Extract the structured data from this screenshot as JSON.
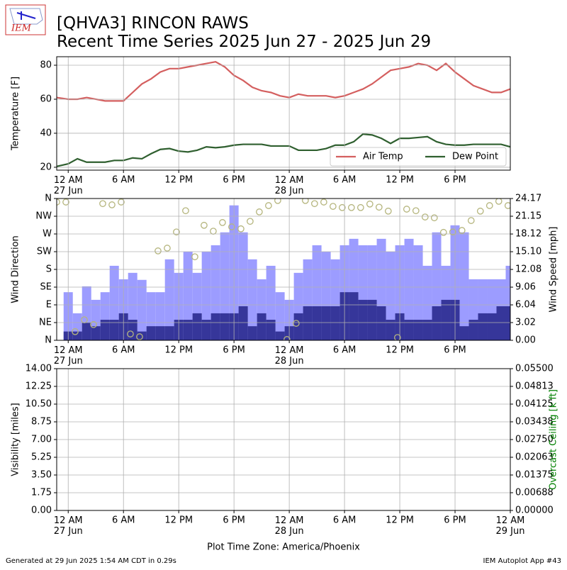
{
  "header": {
    "title": "[QHVA3] RINCON RAWS",
    "subtitle": "Recent Time Series 2025 Jun 27 - 2025 Jun 29",
    "logo_text": "IEM"
  },
  "footer": {
    "left": "Generated at 29 Jun 2025 1:54 AM CDT in 0.29s",
    "right": "IEM Autoplot App #43"
  },
  "chart_data": [
    {
      "type": "line",
      "ylabel": "Temperature [F]",
      "xlim": [
        -1.25,
        48
      ],
      "ylim": [
        18.3,
        85
      ],
      "yticks": [
        20,
        40,
        60,
        80
      ],
      "grid": true,
      "legend": "lower right",
      "xticks": [
        {
          "value": 0,
          "label": "12 AM\n27 Jun"
        },
        {
          "value": 6,
          "label": "6 AM"
        },
        {
          "value": 12,
          "label": "12 PM"
        },
        {
          "value": 18,
          "label": "6 PM"
        },
        {
          "value": 24,
          "label": "12 AM\n28 Jun"
        },
        {
          "value": 30,
          "label": "6 AM"
        },
        {
          "value": 36,
          "label": "12 PM"
        },
        {
          "value": 42,
          "label": "6 PM"
        }
      ],
      "x": [
        -1.25,
        0,
        1,
        2,
        3,
        4,
        5,
        6,
        7,
        8,
        9,
        10,
        11,
        12,
        13,
        14,
        15,
        16,
        17,
        18,
        19,
        20,
        21,
        22,
        23,
        24,
        25,
        26,
        27,
        28,
        29,
        30,
        31,
        32,
        33,
        34,
        35,
        36,
        37,
        38,
        39,
        40,
        41,
        42,
        43,
        44,
        45,
        46,
        47,
        48
      ],
      "series": [
        {
          "name": "Air Temp",
          "type": "line",
          "color": "#d45f5f",
          "values": [
            61,
            60,
            60,
            61,
            60,
            59,
            59,
            59,
            64,
            69,
            72,
            76,
            78,
            78,
            79,
            80,
            81,
            82,
            79,
            74,
            71,
            67,
            65,
            64,
            62,
            61,
            63,
            62,
            62,
            62,
            61,
            62,
            64,
            66,
            69,
            73,
            77,
            78,
            79,
            81,
            80,
            77,
            81,
            76,
            72,
            68,
            66,
            64,
            64,
            66
          ]
        },
        {
          "name": "Dew Point",
          "type": "line",
          "color": "#2f5f2f",
          "values": [
            20.5,
            22,
            25,
            23,
            23,
            23,
            24,
            24,
            25.5,
            25,
            28,
            30.5,
            31,
            29.5,
            29,
            30,
            32,
            31.5,
            32,
            33,
            33.5,
            33.5,
            33.5,
            32.5,
            32.5,
            32.5,
            30,
            30,
            30,
            31,
            33,
            33,
            35,
            39.5,
            39,
            37,
            34,
            37,
            37,
            37.5,
            38,
            35,
            33.5,
            33,
            33,
            33.5,
            33.5,
            33.5,
            33.5,
            32
          ]
        }
      ]
    },
    {
      "type": "bar",
      "ylabel": "Wind Direction",
      "y2label": "Wind Speed [mph]",
      "xlim": [
        -1.25,
        48
      ],
      "grid": true,
      "ylim": [
        0,
        360
      ],
      "yticks": [
        {
          "value": 0,
          "label": "N"
        },
        {
          "value": 45,
          "label": "NE"
        },
        {
          "value": 90,
          "label": "E"
        },
        {
          "value": 135,
          "label": "SE"
        },
        {
          "value": 180,
          "label": "S"
        },
        {
          "value": 225,
          "label": "SW"
        },
        {
          "value": 270,
          "label": "W"
        },
        {
          "value": 315,
          "label": "NW"
        },
        {
          "value": 360,
          "label": "N"
        }
      ],
      "y2lim": [
        0,
        24.17
      ],
      "y2ticks": [
        {
          "value": 0,
          "label": "0.00"
        },
        3.02,
        6.04,
        9.06,
        12.08,
        {
          "value": 15.1,
          "label": "15.10"
        },
        18.12,
        21.15,
        24.17
      ],
      "xticks": [
        {
          "value": 0,
          "label": "12 AM\n27 Jun"
        },
        {
          "value": 6,
          "label": "6 AM"
        },
        {
          "value": 12,
          "label": "12 PM"
        },
        {
          "value": 18,
          "label": "6 PM"
        },
        {
          "value": 24,
          "label": "12 AM\n28 Jun"
        },
        {
          "value": 30,
          "label": "6 AM"
        },
        {
          "value": 36,
          "label": "12 PM"
        },
        {
          "value": 42,
          "label": "6 PM"
        }
      ],
      "series": [
        {
          "type": "bar",
          "axis": "y2",
          "color": "#9c9cff",
          "x": [
            0,
            1,
            2,
            3,
            4,
            5,
            6,
            7,
            8,
            9,
            10,
            11,
            12,
            13,
            14,
            15,
            16,
            17,
            18,
            19,
            20,
            21,
            22,
            23,
            24,
            25,
            26,
            27,
            28,
            29,
            30,
            31,
            32,
            33,
            34,
            35,
            36,
            37,
            38,
            39,
            40,
            41,
            42,
            43,
            44,
            45,
            46,
            47,
            48
          ],
          "values": [
            8.2,
            4.6,
            9.2,
            6.9,
            8.2,
            12.7,
            10.4,
            11.5,
            10.3,
            8.2,
            8.2,
            13.8,
            11.5,
            15.1,
            11.5,
            15.1,
            16.2,
            18.4,
            23.0,
            18.4,
            13.8,
            10.4,
            12.7,
            8.2,
            6.9,
            11.5,
            13.8,
            16.2,
            15.1,
            13.8,
            16.2,
            17.3,
            16.2,
            16.2,
            17.3,
            15.1,
            16.2,
            17.3,
            16.2,
            12.7,
            18.4,
            12.7,
            19.6,
            18.4,
            10.4,
            10.4,
            10.4,
            10.4,
            12.7
          ]
        },
        {
          "type": "bar",
          "axis": "y2",
          "color": "#36369a",
          "x": [
            0,
            1,
            2,
            3,
            4,
            5,
            6,
            7,
            8,
            9,
            10,
            11,
            12,
            13,
            14,
            15,
            16,
            17,
            18,
            19,
            20,
            21,
            22,
            23,
            24,
            25,
            26,
            27,
            28,
            29,
            30,
            31,
            32,
            33,
            34,
            35,
            36,
            37,
            38,
            39,
            40,
            41,
            42,
            43,
            44,
            45,
            46,
            47,
            48
          ],
          "values": [
            1.5,
            1.5,
            3.0,
            2.4,
            3.5,
            3.5,
            4.6,
            3.5,
            1.5,
            2.4,
            2.4,
            2.4,
            3.5,
            3.5,
            4.6,
            3.5,
            4.6,
            4.6,
            4.6,
            5.8,
            2.4,
            4.6,
            3.5,
            1.5,
            2.4,
            4.6,
            5.8,
            5.8,
            5.8,
            5.8,
            8.2,
            8.2,
            6.9,
            6.9,
            5.8,
            3.5,
            4.6,
            3.5,
            3.5,
            3.5,
            5.8,
            6.9,
            6.9,
            2.4,
            3.5,
            4.6,
            4.6,
            5.8,
            5.8
          ]
        },
        {
          "type": "scatter",
          "color": "#b5b57d",
          "x": [
            -1.25,
            -0.25,
            0.75,
            1.75,
            2.75,
            3.75,
            4.75,
            5.75,
            6.75,
            7.75,
            9.75,
            10.75,
            11.75,
            12.75,
            13.75,
            14.75,
            15.75,
            16.75,
            17.75,
            18.75,
            19.75,
            20.75,
            21.75,
            22.75,
            23.75,
            24.75,
            25.75,
            26.75,
            27.75,
            28.75,
            29.75,
            30.75,
            31.75,
            32.75,
            33.75,
            34.75,
            35.75,
            36.75,
            37.75,
            38.75,
            39.75,
            40.75,
            41.75,
            42.75,
            43.75,
            44.75,
            45.75,
            46.75,
            47.75
          ],
          "values": [
            351,
            351,
            22,
            52,
            40,
            347,
            344,
            351,
            16,
            9,
            227,
            234,
            275,
            329,
            212,
            292,
            277,
            299,
            288,
            283,
            302,
            326,
            342,
            355,
            2,
            43,
            355,
            347,
            351,
            340,
            337,
            337,
            337,
            346,
            338,
            328,
            7,
            333,
            329,
            313,
            311,
            274,
            275,
            279,
            304,
            328,
            342,
            353,
            342
          ]
        }
      ]
    },
    {
      "type": "line",
      "ylabel": "Visibility [miles]",
      "y2label": "Overcast Ceiling [k ft]",
      "y2label_color": "green",
      "xlim": [
        -1.25,
        48
      ],
      "grid": true,
      "xlabel": "Plot Time Zone: America/Phoenix",
      "ylim": [
        0,
        14
      ],
      "yticks": [
        {
          "value": 0,
          "label": "0.00"
        },
        1.75,
        {
          "value": 3.5,
          "label": "3.50"
        },
        5.25,
        {
          "value": 7,
          "label": "7.00"
        },
        8.75,
        {
          "value": 10.5,
          "label": "10.50"
        },
        12.25,
        {
          "value": 14,
          "label": "14.00"
        }
      ],
      "y2lim": [
        0,
        0.055
      ],
      "y2ticks": [
        {
          "value": 0,
          "label": "0.00000"
        },
        0.00688,
        0.01375,
        0.02063,
        {
          "value": 0.0275,
          "label": "0.02750"
        },
        0.03438,
        0.04125,
        0.04813,
        {
          "value": 0.055,
          "label": "0.05500"
        }
      ],
      "xticks": [
        {
          "value": 0,
          "label": "12 AM\n27 Jun"
        },
        {
          "value": 6,
          "label": "6 AM"
        },
        {
          "value": 12,
          "label": "12 PM"
        },
        {
          "value": 18,
          "label": "6 PM"
        },
        {
          "value": 24,
          "label": "12 AM\n28 Jun"
        },
        {
          "value": 30,
          "label": "6 AM"
        },
        {
          "value": 36,
          "label": "12 PM"
        },
        {
          "value": 42,
          "label": "6 PM"
        },
        {
          "value": 48,
          "label": "12 AM\n29 Jun"
        }
      ],
      "series": []
    }
  ]
}
